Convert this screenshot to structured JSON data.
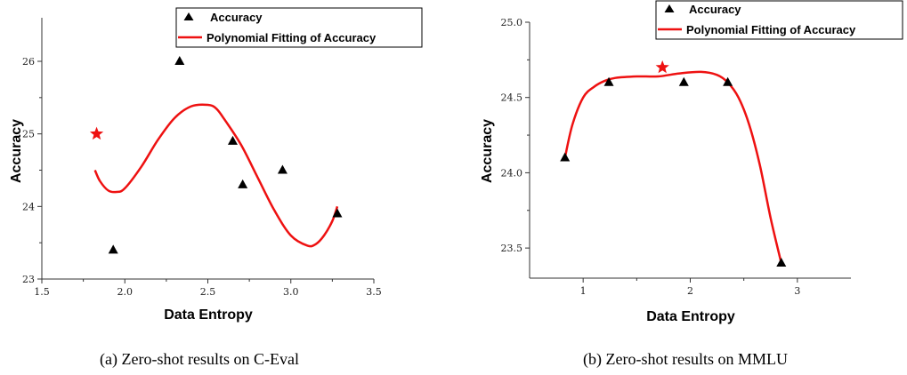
{
  "chart_data": [
    {
      "type": "scatter",
      "caption": "(a) Zero-shot results on C-Eval",
      "xlabel": "Data Entropy",
      "ylabel": "Accuracy",
      "xlim": [
        1.5,
        3.5
      ],
      "ylim": [
        23,
        26.6
      ],
      "xticks": [
        "1.5",
        "2.0",
        "2.5",
        "3.0",
        "3.5"
      ],
      "yticks": [
        "23",
        "24",
        "25",
        "26"
      ],
      "legend_position": "top-right",
      "series": [
        {
          "name": "Accuracy",
          "marker": "triangle",
          "color": "#000000",
          "x": [
            1.93,
            2.33,
            2.65,
            2.71,
            2.95,
            3.28
          ],
          "y": [
            23.4,
            26.0,
            24.9,
            24.3,
            24.5,
            23.9
          ]
        },
        {
          "name": "Polynomial Fitting of Accuracy",
          "marker": "line",
          "color": "#ee1111",
          "x": [
            1.82,
            1.85,
            1.9,
            1.95,
            2.0,
            2.1,
            2.2,
            2.3,
            2.4,
            2.5,
            2.55,
            2.6,
            2.7,
            2.8,
            2.9,
            3.0,
            3.1,
            3.15,
            3.2,
            3.25,
            3.28
          ],
          "y": [
            24.5,
            24.35,
            24.22,
            24.2,
            24.25,
            24.55,
            24.92,
            25.22,
            25.38,
            25.4,
            25.35,
            25.2,
            24.85,
            24.4,
            23.95,
            23.6,
            23.46,
            23.48,
            23.6,
            23.8,
            24.0
          ]
        }
      ],
      "highlight": {
        "marker": "star",
        "color": "#ee1111",
        "x": 1.83,
        "y": 25.0
      }
    },
    {
      "type": "scatter",
      "caption": "(b) Zero-shot results on MMLU",
      "xlabel": "Data Entropy",
      "ylabel": "Accuracy",
      "xlim": [
        0.5,
        3.5
      ],
      "ylim": [
        23.3,
        25.0
      ],
      "xticks": [
        "1",
        "2",
        "3"
      ],
      "yticks": [
        "23.5",
        "24.0",
        "24.5",
        "25.0"
      ],
      "legend_position": "top-right",
      "series": [
        {
          "name": "Accuracy",
          "marker": "triangle",
          "color": "#000000",
          "x": [
            0.83,
            1.24,
            1.94,
            2.35,
            2.85
          ],
          "y": [
            24.1,
            24.6,
            24.6,
            24.6,
            23.4
          ]
        },
        {
          "name": "Polynomial Fitting of Accuracy",
          "marker": "line",
          "color": "#ee1111",
          "x": [
            0.83,
            0.9,
            1.0,
            1.1,
            1.2,
            1.3,
            1.5,
            1.7,
            1.9,
            2.1,
            2.25,
            2.35,
            2.45,
            2.55,
            2.65,
            2.75,
            2.85
          ],
          "y": [
            24.1,
            24.32,
            24.5,
            24.57,
            24.61,
            24.63,
            24.64,
            24.64,
            24.66,
            24.67,
            24.65,
            24.6,
            24.5,
            24.32,
            24.05,
            23.7,
            23.4
          ]
        }
      ],
      "highlight": {
        "marker": "star",
        "color": "#ee1111",
        "x": 1.74,
        "y": 24.7
      }
    }
  ]
}
